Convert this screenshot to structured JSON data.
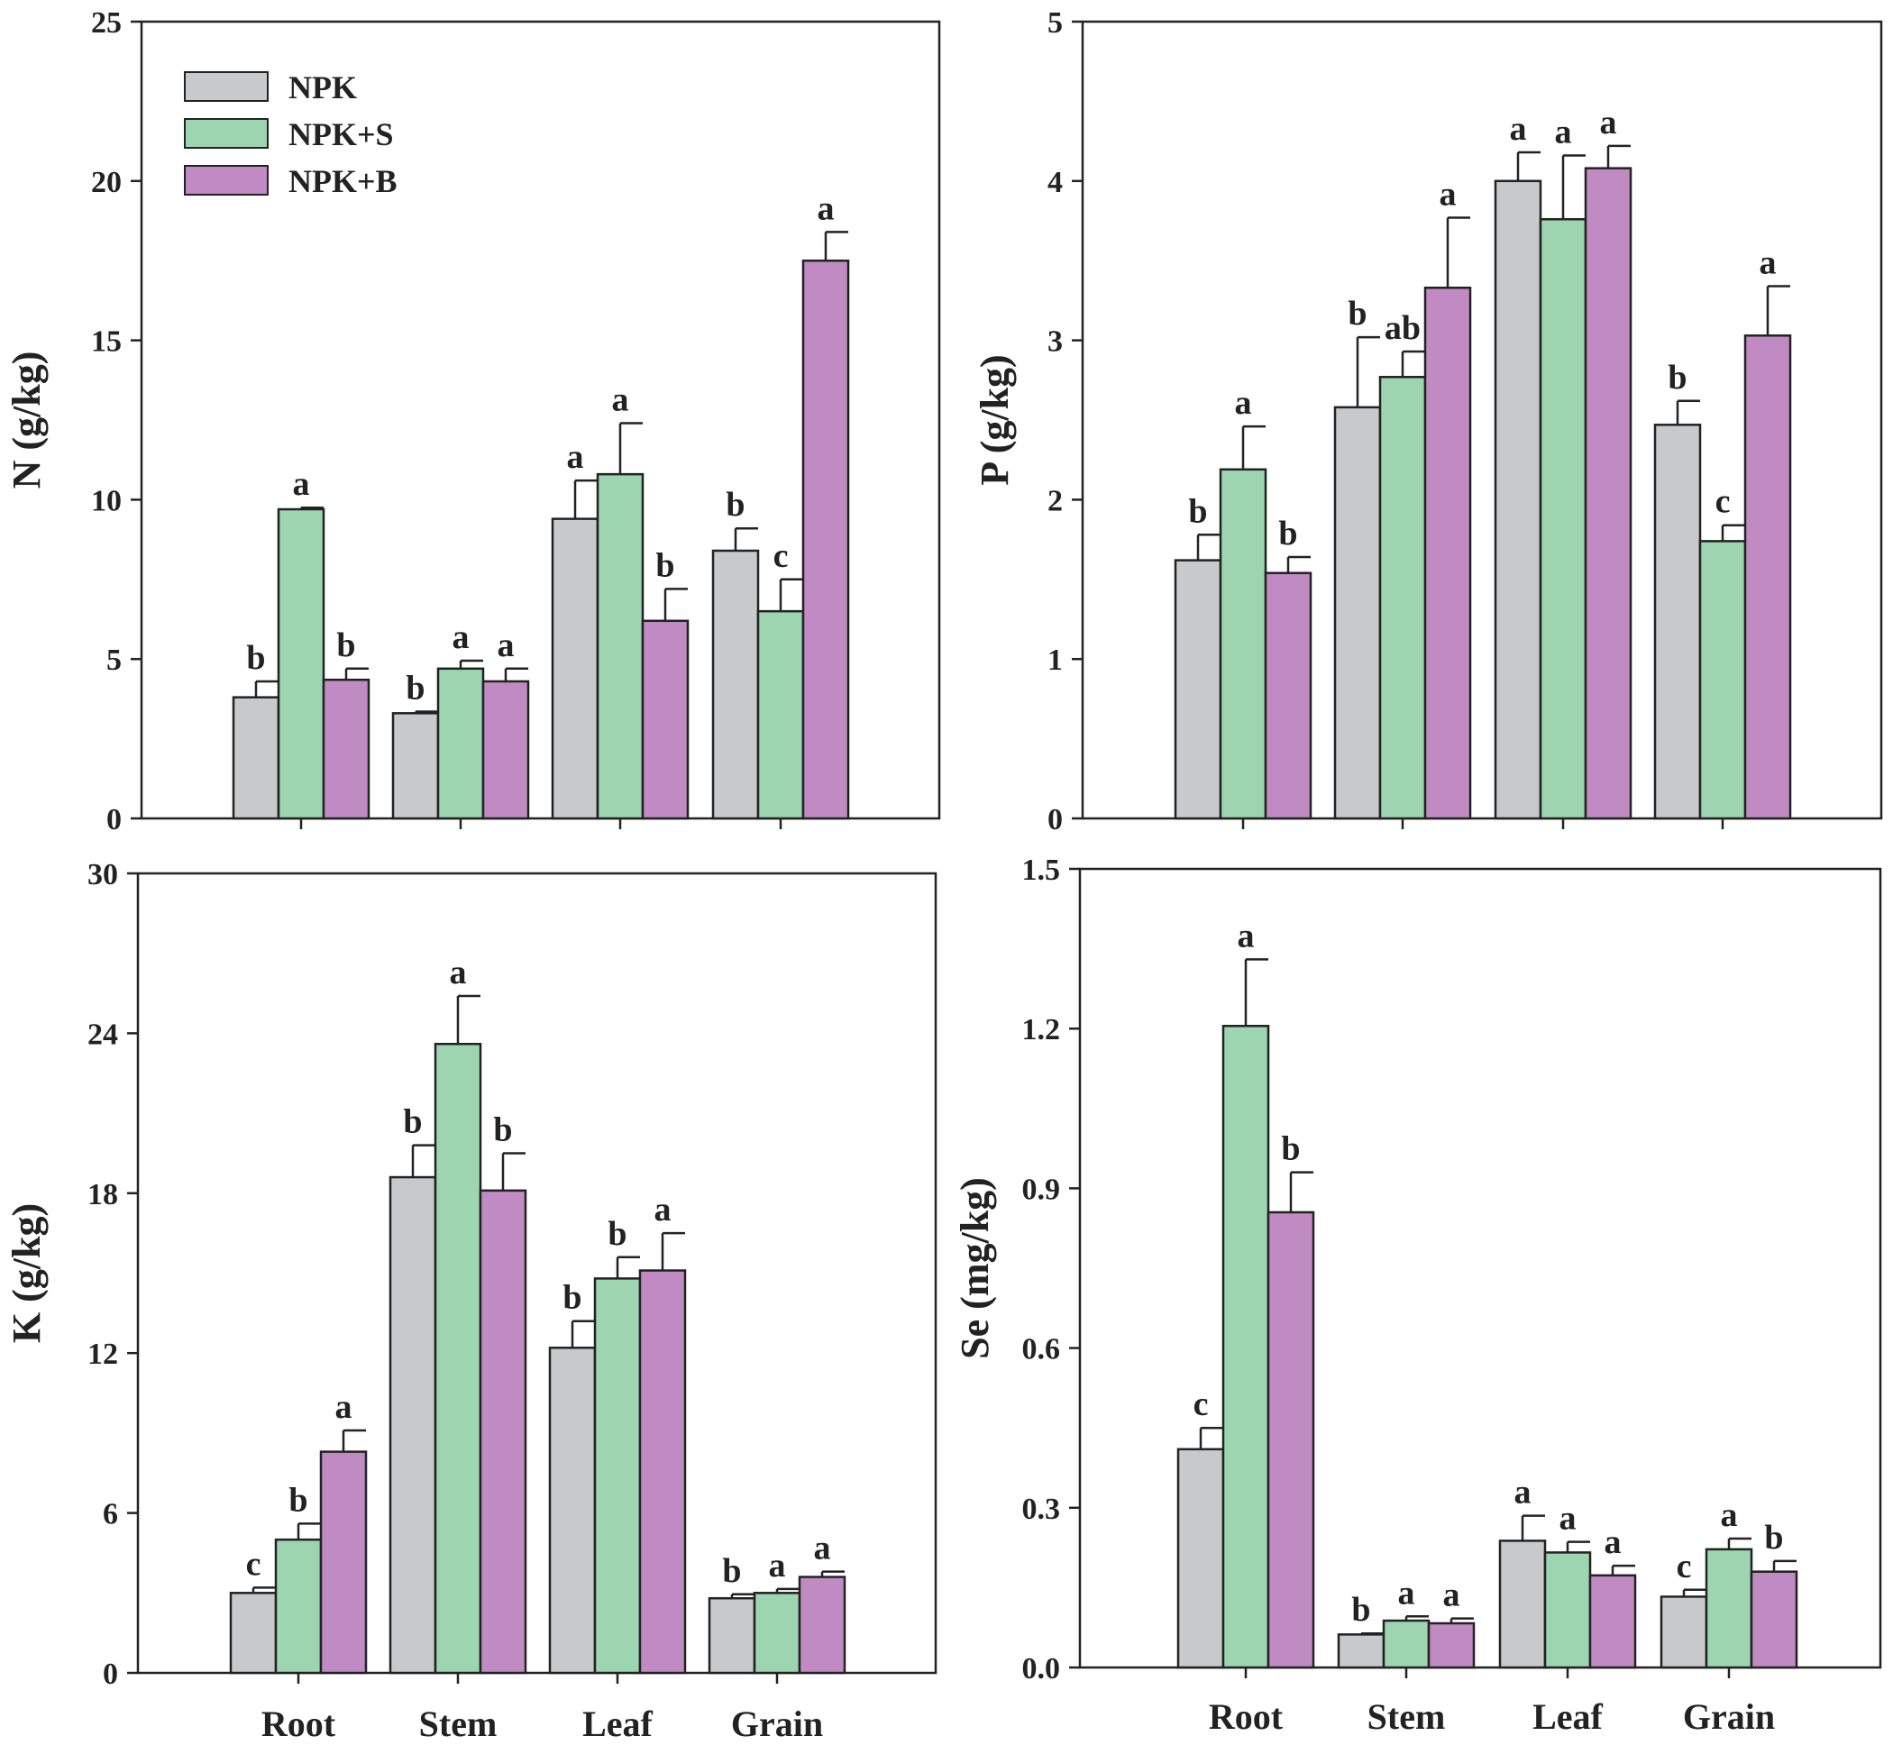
{
  "chart_data": [
    {
      "type": "bar",
      "id": "N",
      "ylabel": "N (g/kg)",
      "ylim": [
        0,
        25
      ],
      "yticks": [
        "0",
        "5",
        "10",
        "15",
        "20",
        "25"
      ],
      "categories": [
        "Root",
        "Stem",
        "Leaf",
        "Grain"
      ],
      "show_xlabels": false,
      "legend": "top-left",
      "series": [
        {
          "name": "NPK",
          "values": [
            3.8,
            3.3,
            9.4,
            8.4
          ],
          "errors": [
            0.5,
            0.05,
            1.2,
            0.7
          ],
          "letters": [
            "b",
            "b",
            "a",
            "b"
          ]
        },
        {
          "name": "NPK+S",
          "values": [
            9.7,
            4.7,
            10.8,
            6.5
          ],
          "errors": [
            0.05,
            0.25,
            1.6,
            1.0
          ],
          "letters": [
            "a",
            "a",
            "a",
            "c"
          ]
        },
        {
          "name": "NPK+B",
          "values": [
            4.35,
            4.3,
            6.2,
            17.5
          ],
          "errors": [
            0.35,
            0.4,
            1.0,
            0.9
          ],
          "letters": [
            "b",
            "a",
            "b",
            "a"
          ]
        }
      ]
    },
    {
      "type": "bar",
      "id": "P",
      "ylabel": "P (g/kg)",
      "ylim": [
        0,
        5
      ],
      "yticks": [
        "0",
        "1",
        "2",
        "3",
        "4",
        "5"
      ],
      "categories": [
        "Root",
        "Stem",
        "Leaf",
        "Grain"
      ],
      "show_xlabels": false,
      "series": [
        {
          "name": "NPK",
          "values": [
            1.62,
            2.58,
            4.0,
            2.47
          ],
          "errors": [
            0.16,
            0.44,
            0.18,
            0.15
          ],
          "letters": [
            "b",
            "b",
            "a",
            "b"
          ]
        },
        {
          "name": "NPK+S",
          "values": [
            2.19,
            2.77,
            3.76,
            1.74
          ],
          "errors": [
            0.27,
            0.16,
            0.4,
            0.1
          ],
          "letters": [
            "a",
            "ab",
            "a",
            "c"
          ]
        },
        {
          "name": "NPK+B",
          "values": [
            1.54,
            3.33,
            4.08,
            3.03
          ],
          "errors": [
            0.1,
            0.44,
            0.14,
            0.31
          ],
          "letters": [
            "b",
            "a",
            "a",
            "a"
          ]
        }
      ]
    },
    {
      "type": "bar",
      "id": "K",
      "ylabel": "K (g/kg)",
      "ylim": [
        0,
        30
      ],
      "yticks": [
        "0",
        "6",
        "12",
        "18",
        "24",
        "30"
      ],
      "categories": [
        "Root",
        "Stem",
        "Leaf",
        "Grain"
      ],
      "show_xlabels": true,
      "series": [
        {
          "name": "NPK",
          "values": [
            3.0,
            18.6,
            12.2,
            2.8
          ],
          "errors": [
            0.2,
            1.2,
            1.0,
            0.15
          ],
          "letters": [
            "c",
            "b",
            "b",
            "b"
          ]
        },
        {
          "name": "NPK+S",
          "values": [
            5.0,
            23.6,
            14.8,
            3.0
          ],
          "errors": [
            0.6,
            1.8,
            0.8,
            0.15
          ],
          "letters": [
            "b",
            "a",
            "b",
            "a"
          ]
        },
        {
          "name": "NPK+B",
          "values": [
            8.3,
            18.1,
            15.1,
            3.6
          ],
          "errors": [
            0.8,
            1.4,
            1.4,
            0.2
          ],
          "letters": [
            "a",
            "b",
            "a",
            "a"
          ]
        }
      ]
    },
    {
      "type": "bar",
      "id": "Se",
      "ylabel": "Se (mg/kg)",
      "ylim": [
        0,
        1.5
      ],
      "yticks": [
        "0.0",
        "0.3",
        "0.6",
        "0.9",
        "1.2",
        "1.5"
      ],
      "categories": [
        "Root",
        "Stem",
        "Leaf",
        "Grain"
      ],
      "show_xlabels": true,
      "series": [
        {
          "name": "NPK",
          "values": [
            0.41,
            0.062,
            0.238,
            0.133
          ],
          "errors": [
            0.04,
            0.002,
            0.047,
            0.013
          ],
          "letters": [
            "c",
            "b",
            "a",
            "c"
          ]
        },
        {
          "name": "NPK+S",
          "values": [
            1.205,
            0.088,
            0.216,
            0.222
          ],
          "errors": [
            0.125,
            0.008,
            0.02,
            0.02
          ],
          "letters": [
            "a",
            "a",
            "a",
            "a"
          ]
        },
        {
          "name": "NPK+B",
          "values": [
            0.855,
            0.083,
            0.173,
            0.18
          ],
          "errors": [
            0.075,
            0.009,
            0.018,
            0.02
          ],
          "letters": [
            "b",
            "a",
            "a",
            "b"
          ]
        }
      ]
    }
  ],
  "legend": [
    {
      "label": "NPK",
      "color": "#c8c9cb"
    },
    {
      "label": "NPK+S",
      "color": "#9dd5b1"
    },
    {
      "label": "NPK+B",
      "color": "#bf8bc2"
    }
  ],
  "colors": {
    "axis": "#222222",
    "edge": "#222222"
  }
}
